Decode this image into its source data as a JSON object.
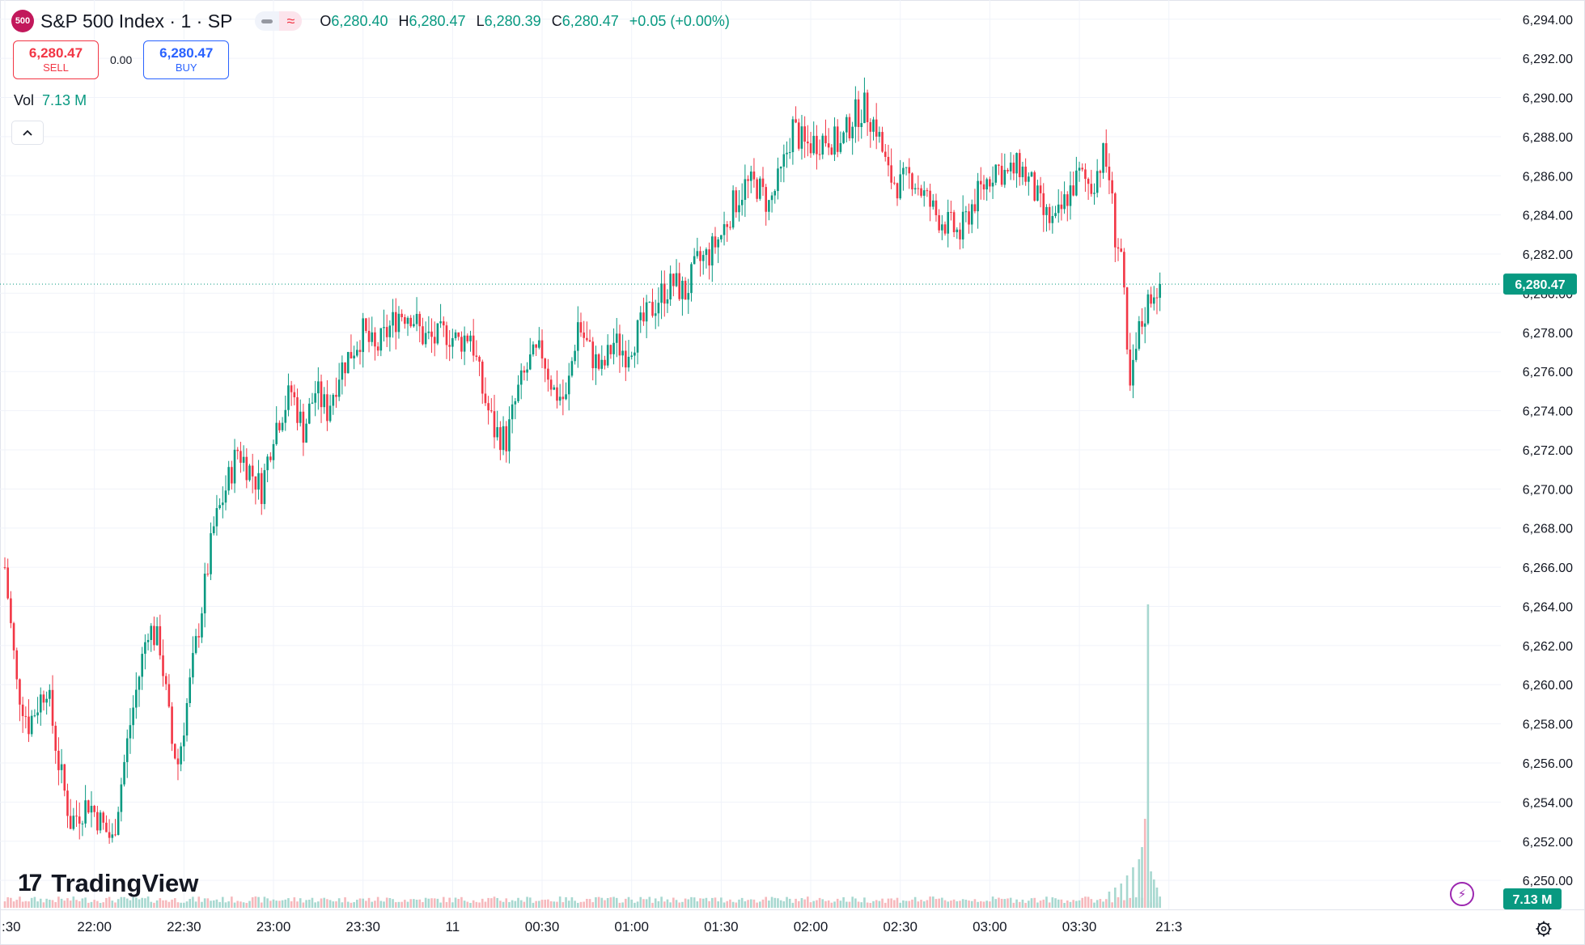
{
  "symbol": {
    "badge": "500",
    "title": "S&P 500 Index · 1 · SP"
  },
  "ohlc": {
    "o_label": "O",
    "o": "6,280.40",
    "h_label": "H",
    "h": "6,280.47",
    "l_label": "L",
    "l": "6,280.39",
    "c_label": "C",
    "c": "6,280.47",
    "change": "+0.05 (+0.00%)"
  },
  "trade": {
    "sell_price": "6,280.47",
    "sell_label": "SELL",
    "spread": "0.00",
    "buy_price": "6,280.47",
    "buy_label": "BUY"
  },
  "volume_legend": {
    "label": "Vol",
    "value": "7.13 M"
  },
  "branding": {
    "logo_text": "TradingView"
  },
  "colors": {
    "up": "#089981",
    "down": "#f23645",
    "vol_up": "#a7d8d0",
    "vol_down": "#f6b8bc",
    "grid": "#f0f3fa",
    "text": "#131722",
    "last_price_bg": "#089981",
    "buy": "#2962ff",
    "sell": "#f23645"
  },
  "icons": {
    "collapse": "chevron-up-icon",
    "replay": "lightning-bolt-icon",
    "settings": "gear-icon",
    "compare": "approx-icon"
  },
  "chart_data": {
    "type": "candlestick",
    "interval": "1 minute",
    "y_axis": {
      "ticks": [
        6250,
        6252,
        6254,
        6256,
        6258,
        6260,
        6262,
        6264,
        6266,
        6268,
        6270,
        6272,
        6274,
        6276,
        6278,
        6280,
        6282,
        6284,
        6286,
        6288,
        6290,
        6292,
        6294
      ],
      "tick_labels": [
        "6,250.00",
        "6,252.00",
        "6,254.00",
        "6,256.00",
        "6,258.00",
        "6,260.00",
        "6,262.00",
        "6,264.00",
        "6,266.00",
        "6,268.00",
        "6,270.00",
        "6,272.00",
        "6,274.00",
        "6,276.00",
        "6,278.00",
        "6,280.00",
        "6,282.00",
        "6,284.00",
        "6,286.00",
        "6,288.00",
        "6,290.00",
        "6,292.00",
        "6,294.00"
      ],
      "range": [
        6248.6,
        6294.9
      ]
    },
    "x_axis": {
      "tick_labels": [
        ":30",
        "22:00",
        "22:30",
        "23:00",
        "23:30",
        "11",
        "00:30",
        "01:00",
        "01:30",
        "02:00",
        "02:30",
        "03:00",
        "03:30",
        "21:3"
      ],
      "tick_minutes_from_21_30": [
        0,
        30,
        60,
        90,
        120,
        150,
        180,
        210,
        240,
        270,
        300,
        330,
        360,
        390
      ]
    },
    "last_price": 6280.47,
    "last_price_label": "6,280.47",
    "volume_label": "7.13 M",
    "path_points": [
      [
        0,
        6266
      ],
      [
        4,
        6260
      ],
      [
        8,
        6258
      ],
      [
        14,
        6260
      ],
      [
        18,
        6256
      ],
      [
        22,
        6253
      ],
      [
        28,
        6254
      ],
      [
        36,
        6252
      ],
      [
        42,
        6258
      ],
      [
        48,
        6263
      ],
      [
        52,
        6262
      ],
      [
        56,
        6257
      ],
      [
        58,
        6256
      ],
      [
        62,
        6260
      ],
      [
        66,
        6264
      ],
      [
        70,
        6268
      ],
      [
        74,
        6270
      ],
      [
        78,
        6272
      ],
      [
        82,
        6271
      ],
      [
        86,
        6270
      ],
      [
        90,
        6273
      ],
      [
        96,
        6275
      ],
      [
        100,
        6273
      ],
      [
        104,
        6275
      ],
      [
        108,
        6274
      ],
      [
        112,
        6276
      ],
      [
        116,
        6277
      ],
      [
        120,
        6278
      ],
      [
        124,
        6277
      ],
      [
        128,
        6278
      ],
      [
        132,
        6279
      ],
      [
        136,
        6279
      ],
      [
        140,
        6277.8
      ],
      [
        144,
        6277.6
      ],
      [
        148,
        6278
      ],
      [
        152,
        6277.5
      ],
      [
        156,
        6278
      ],
      [
        160,
        6275
      ],
      [
        164,
        6273
      ],
      [
        168,
        6272.5
      ],
      [
        172,
        6275
      ],
      [
        176,
        6276.5
      ],
      [
        180,
        6277
      ],
      [
        184,
        6275
      ],
      [
        188,
        6274.5
      ],
      [
        192,
        6278.5
      ],
      [
        196,
        6277
      ],
      [
        200,
        6276
      ],
      [
        204,
        6277.5
      ],
      [
        208,
        6277
      ],
      [
        212,
        6278
      ],
      [
        216,
        6279
      ],
      [
        220,
        6280
      ],
      [
        224,
        6280.5
      ],
      [
        228,
        6280
      ],
      [
        232,
        6281.5
      ],
      [
        236,
        6282
      ],
      [
        240,
        6283
      ],
      [
        244,
        6284.5
      ],
      [
        248,
        6285.5
      ],
      [
        252,
        6285.5
      ],
      [
        256,
        6284.5
      ],
      [
        260,
        6286
      ],
      [
        264,
        6288.5
      ],
      [
        268,
        6287.5
      ],
      [
        272,
        6287.8
      ],
      [
        276,
        6288
      ],
      [
        280,
        6287.5
      ],
      [
        284,
        6289
      ],
      [
        288,
        6289.5
      ],
      [
        292,
        6288.5
      ],
      [
        296,
        6286
      ],
      [
        300,
        6285.5
      ],
      [
        304,
        6286
      ],
      [
        308,
        6285
      ],
      [
        312,
        6284
      ],
      [
        316,
        6283.5
      ],
      [
        320,
        6283
      ],
      [
        324,
        6284.5
      ],
      [
        328,
        6285.5
      ],
      [
        332,
        6286.5
      ],
      [
        336,
        6286
      ],
      [
        340,
        6286.5
      ],
      [
        344,
        6285.5
      ],
      [
        348,
        6284
      ],
      [
        352,
        6283.5
      ],
      [
        356,
        6285
      ],
      [
        360,
        6286
      ],
      [
        364,
        6285.5
      ],
      [
        368,
        6287
      ],
      [
        370,
        6286
      ],
      [
        372,
        6283
      ],
      [
        374,
        6282
      ],
      [
        375,
        6279.5
      ],
      [
        376,
        6276.5
      ],
      [
        377,
        6275
      ],
      [
        378,
        6276
      ],
      [
        380,
        6278
      ],
      [
        382,
        6279
      ],
      [
        384,
        6280
      ],
      [
        386,
        6280.4
      ],
      [
        387,
        6280.47
      ]
    ],
    "volume_bars_note_free": [
      [
        370,
        0.04
      ],
      [
        372,
        0.05
      ],
      [
        374,
        0.06
      ],
      [
        376,
        0.08
      ],
      [
        378,
        0.1
      ],
      [
        380,
        0.12
      ],
      [
        381,
        0.15
      ],
      [
        382,
        0.22
      ],
      [
        383,
        0.75
      ],
      [
        384,
        0.09
      ],
      [
        385,
        0.07
      ],
      [
        386,
        0.05
      ]
    ]
  }
}
